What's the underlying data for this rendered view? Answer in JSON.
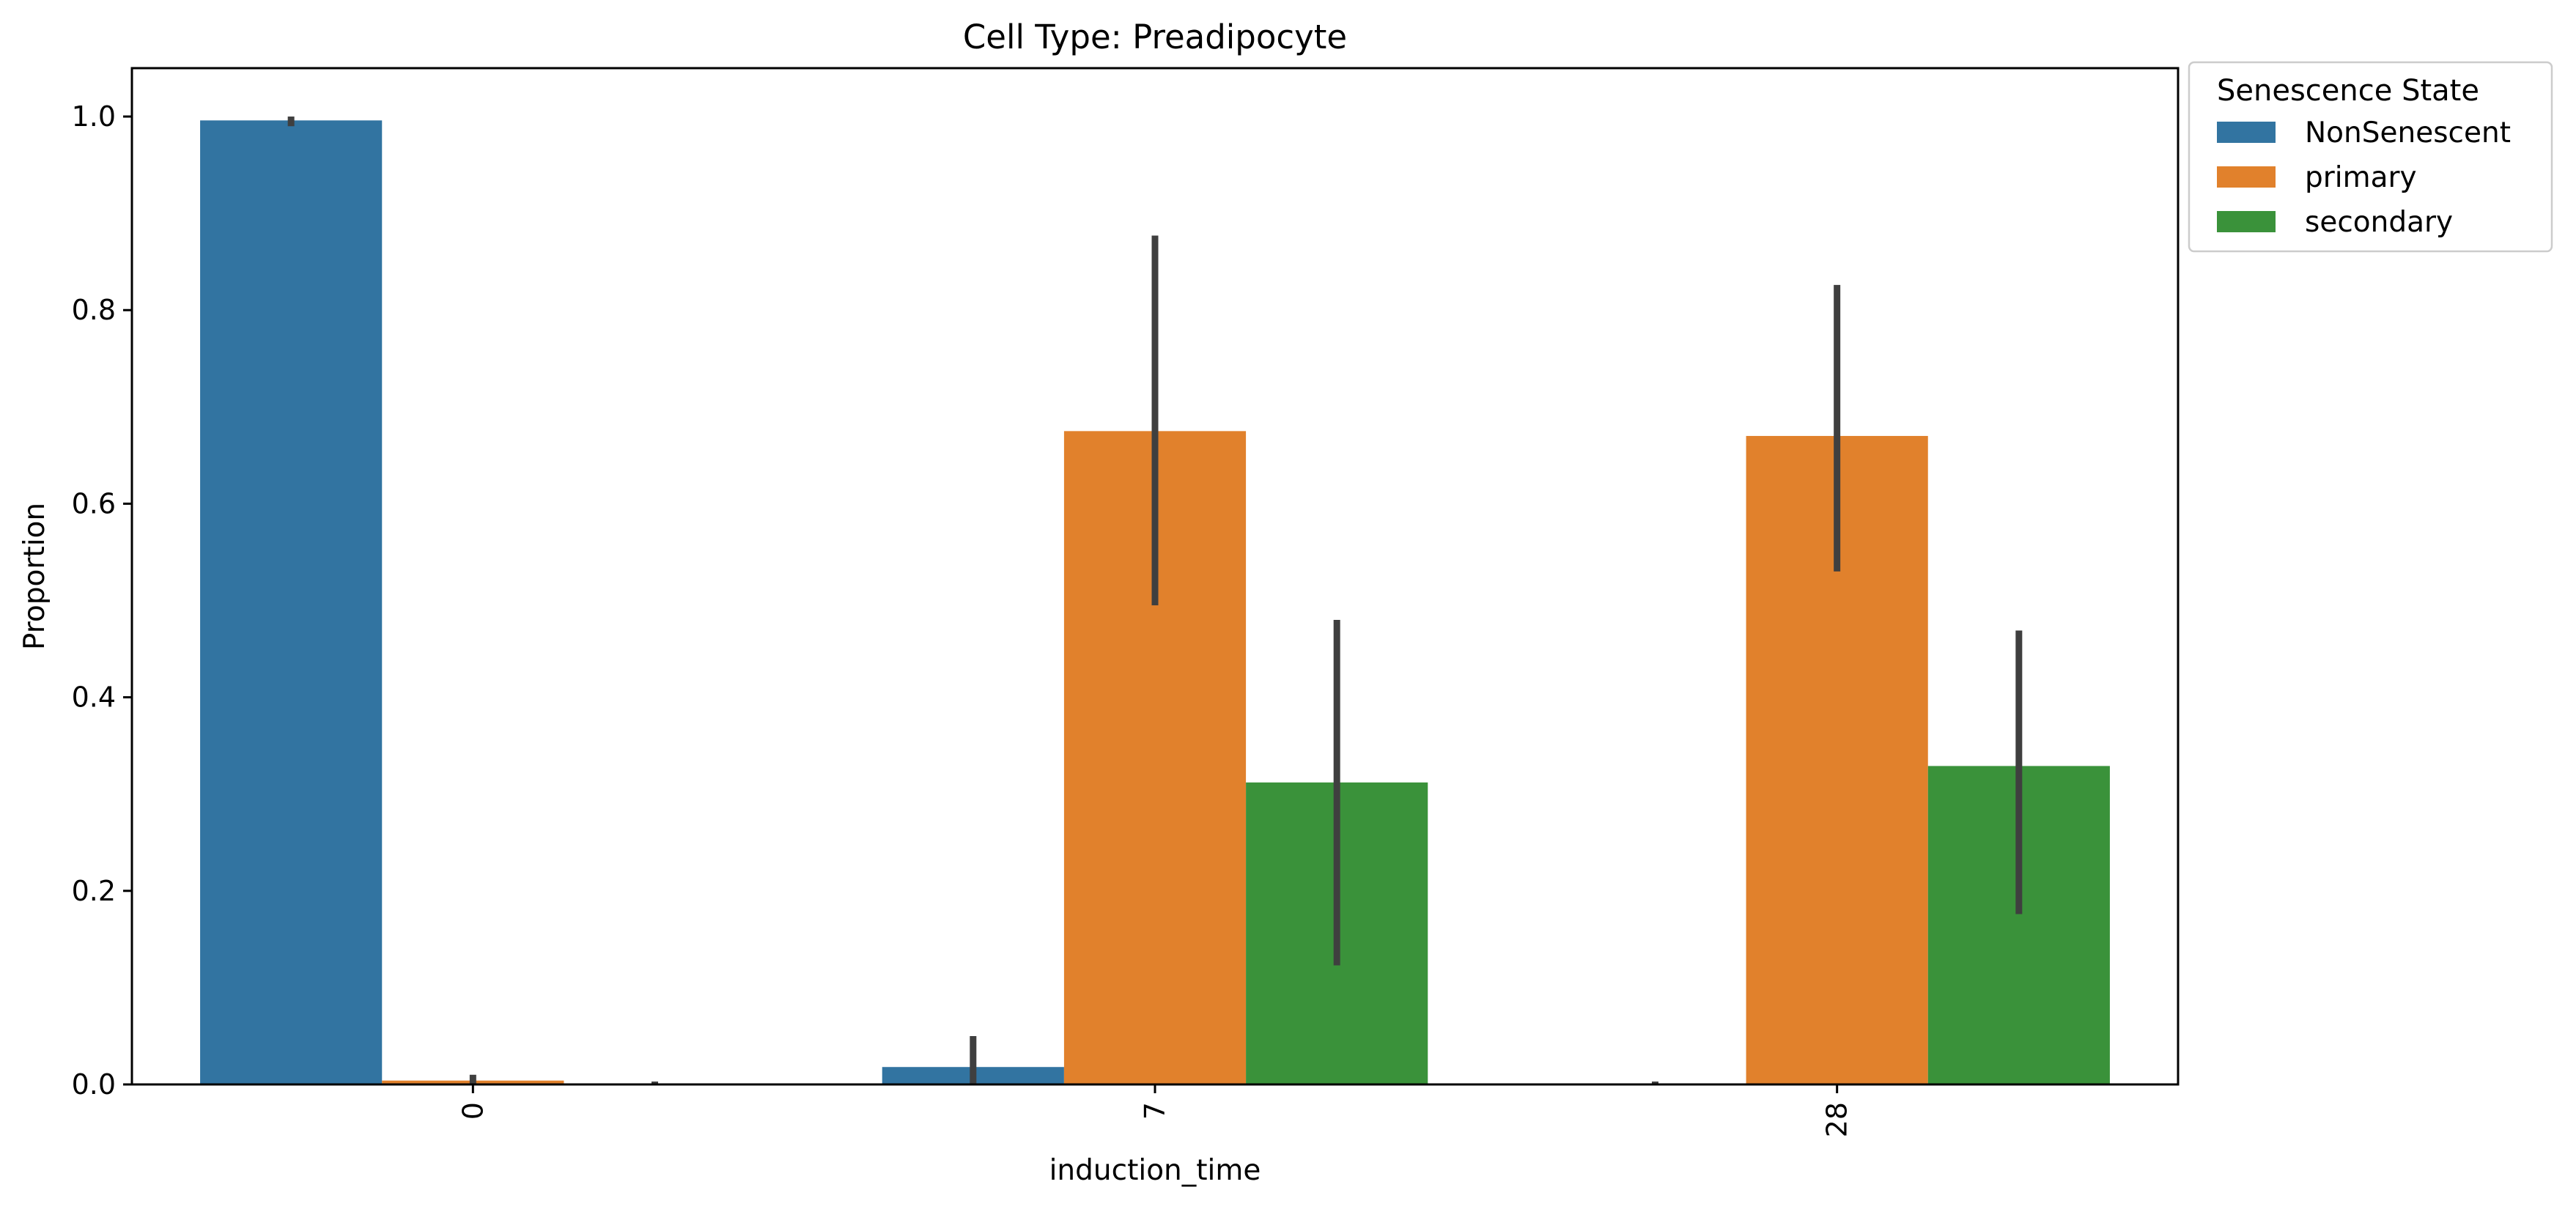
{
  "chart_data": {
    "type": "bar",
    "title": "Cell Type: Preadipocyte",
    "xlabel": "induction_time",
    "ylabel": "Proportion",
    "categories": [
      "0",
      "7",
      "28"
    ],
    "ylim": [
      0,
      1.05
    ],
    "yticks": [
      "0.0",
      "0.2",
      "0.4",
      "0.6",
      "0.8",
      "1.0"
    ],
    "grid": false,
    "legend": {
      "title": "Senescence State",
      "placement": "outside-top-right"
    },
    "series": [
      {
        "name": "NonSenescent",
        "color": "#3274a1",
        "values": [
          0.996,
          0.018,
          0.0
        ],
        "ci": [
          [
            0.99,
            1.0
          ],
          [
            0.0,
            0.05
          ],
          [
            0.0,
            0.003
          ]
        ]
      },
      {
        "name": "primary",
        "color": "#e1812c",
        "values": [
          0.004,
          0.675,
          0.67
        ],
        "ci": [
          [
            0.0,
            0.01
          ],
          [
            0.495,
            0.877
          ],
          [
            0.53,
            0.826
          ]
        ]
      },
      {
        "name": "secondary",
        "color": "#3a923a",
        "values": [
          0.0,
          0.312,
          0.329
        ],
        "ci": [
          [
            0.0,
            0.003
          ],
          [
            0.123,
            0.48
          ],
          [
            0.176,
            0.469
          ]
        ]
      }
    ]
  }
}
